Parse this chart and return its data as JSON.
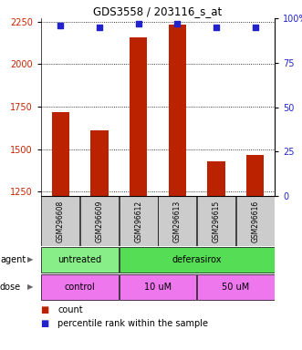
{
  "title": "GDS3558 / 203116_s_at",
  "samples": [
    "GSM296608",
    "GSM296609",
    "GSM296612",
    "GSM296613",
    "GSM296615",
    "GSM296616"
  ],
  "count_values": [
    1720,
    1610,
    2155,
    2230,
    1430,
    1465
  ],
  "percentile_values": [
    96,
    95,
    97,
    97,
    95,
    95
  ],
  "bar_bottom": 1225,
  "ylim_left": [
    1225,
    2270
  ],
  "ylim_right": [
    0,
    100
  ],
  "yticks_left": [
    1250,
    1500,
    1750,
    2000,
    2250
  ],
  "yticks_right": [
    0,
    25,
    50,
    75,
    100
  ],
  "bar_color": "#bb2200",
  "dot_color": "#2222cc",
  "bar_width": 0.45,
  "left_color": "#cc2200",
  "right_color": "#2222cc",
  "sample_bg": "#cccccc",
  "agent_untreated_color": "#88ee88",
  "agent_deferasirox_color": "#55dd55",
  "dose_color": "#ee77ee",
  "legend_count": "count",
  "legend_pct": "percentile rank within the sample",
  "agent_label": "agent",
  "dose_label": "dose",
  "untreated_text": "untreated",
  "deferasirox_text": "deferasirox",
  "control_text": "control",
  "dose10_text": "10 uM",
  "dose50_text": "50 uM"
}
